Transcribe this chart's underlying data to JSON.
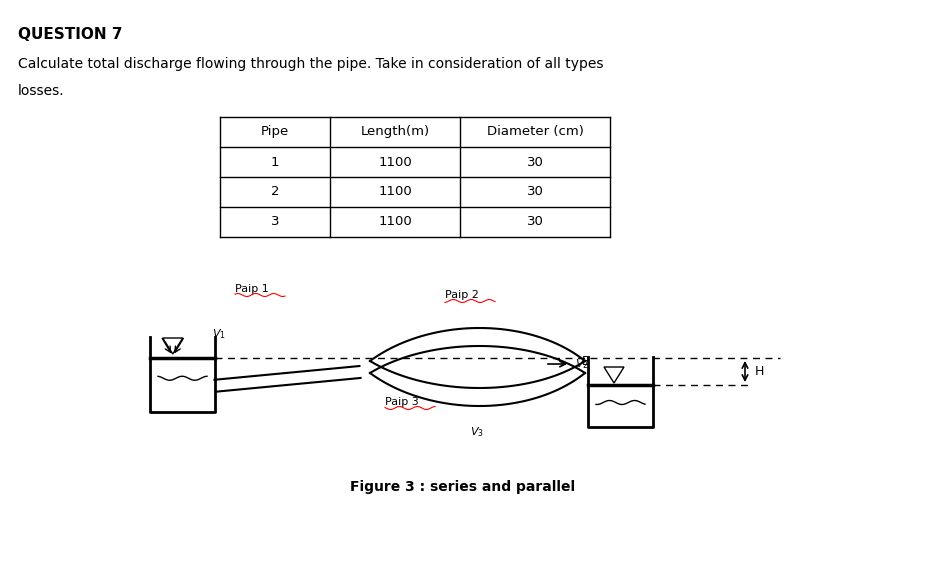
{
  "title": "QUESTION 7",
  "description_line1": "Calculate total discharge flowing through the pipe. Take in consideration of all types",
  "description_line2": "losses.",
  "table_headers": [
    "Pipe",
    "Length(m)",
    "Diameter (cm)"
  ],
  "table_rows": [
    [
      "1",
      "1100",
      "30"
    ],
    [
      "2",
      "1100",
      "30"
    ],
    [
      "3",
      "1100",
      "30"
    ]
  ],
  "figure_caption": "Figure 3 : series and parallel",
  "bg_color": "#ffffff",
  "text_color": "#000000",
  "table_line_color": "#000000",
  "diagram_color": "#000000"
}
